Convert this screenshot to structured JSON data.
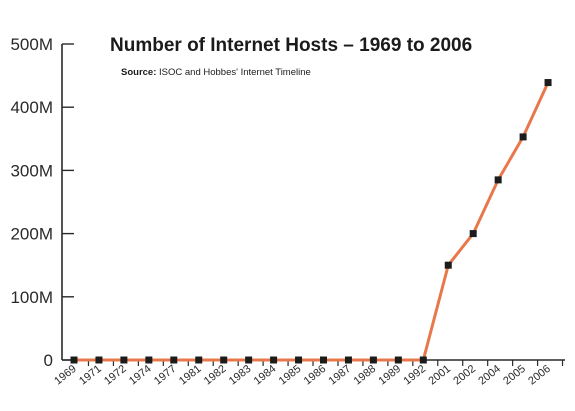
{
  "chart_data": {
    "type": "line",
    "title": "Number of Internet Hosts – 1969 to 2006",
    "source_label": "Source:",
    "source_text": " ISOC and Hobbes' Internet Timeline",
    "xlabel": "",
    "ylabel": "",
    "categories": [
      "1969",
      "1971",
      "1972",
      "1974",
      "1977",
      "1981",
      "1982",
      "1983",
      "1984",
      "1985",
      "1986",
      "1987",
      "1988",
      "1989",
      "1992",
      "2001",
      "2002",
      "2004",
      "2005",
      "2006"
    ],
    "series": [
      {
        "values": [
          0,
          0,
          0,
          0,
          0,
          0,
          0,
          0,
          0,
          0,
          0,
          0,
          0,
          0,
          0,
          150,
          200,
          285,
          353,
          439
        ]
      }
    ],
    "value_unit": "millions",
    "ylim": [
      0,
      500
    ],
    "y_ticks": [
      {
        "value": 0,
        "label": "0"
      },
      {
        "value": 100,
        "label": "100M"
      },
      {
        "value": 200,
        "label": "200M"
      },
      {
        "value": 300,
        "label": "300M"
      },
      {
        "value": 400,
        "label": "400M"
      },
      {
        "value": 500,
        "label": "500M"
      }
    ],
    "grid": false,
    "legend": "none",
    "colors": {
      "line": "#e8784b",
      "marker": "#1c1c1c",
      "axis": "#2a2a2a",
      "text": "#1b1b1b"
    }
  }
}
